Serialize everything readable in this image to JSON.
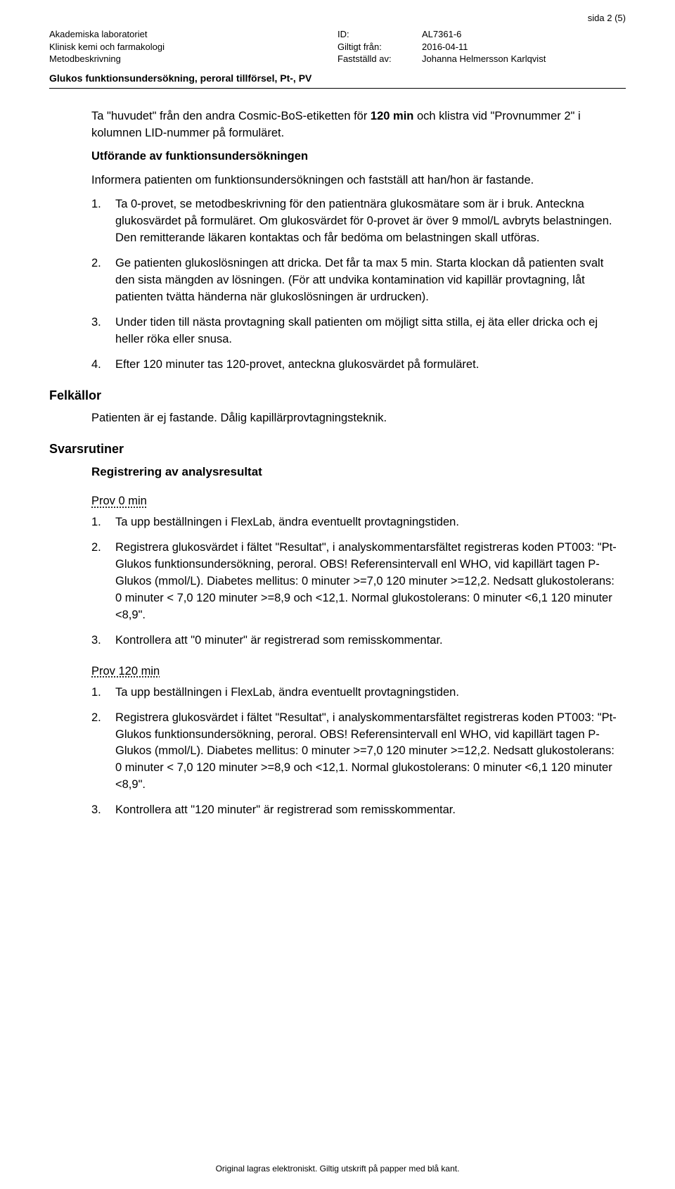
{
  "page_indicator": "sida 2 (5)",
  "header": {
    "left": {
      "org": "Akademiska laboratoriet",
      "dept": "Klinisk kemi och farmakologi",
      "doc_type": "Metodbeskrivning"
    },
    "right": {
      "id_label": "ID:",
      "id_value": "AL7361-6",
      "valid_label": "Giltigt från:",
      "valid_value": "2016-04-11",
      "approved_label": "Fastställd av:",
      "approved_value": "Johanna Helmersson Karlqvist"
    },
    "title": "Glukos funktionsundersökning, peroral tillförsel, Pt-, PV"
  },
  "intro": {
    "p1_a": "Ta \"huvudet\" från den andra Cosmic-BoS-etiketten för ",
    "p1_b_bold": "120 min",
    "p1_c": " och klistra vid \"Provnummer 2\" i kolumnen LID-nummer på formuläret.",
    "p2_heading": "Utförande av funktionsundersökningen",
    "p3": "Informera patienten om funktionsundersökningen och fastställ att han/hon är fastande."
  },
  "steps": [
    "Ta 0-provet, se metodbeskrivning för den patientnära glukosmätare som är i bruk. Anteckna glukosvärdet på formuläret. Om glukosvärdet för 0-provet är över 9 mmol/L avbryts belastningen. Den remitterande läkaren kontaktas och får bedöma om belastningen skall utföras.",
    "Ge patienten glukoslösningen att dricka. Det får ta max 5 min. Starta klockan då patienten svalt den sista mängden av lösningen. (För att undvika kontamination vid kapillär provtagning, låt patienten tvätta händerna när glukoslösningen är urdrucken).",
    "Under tiden till nästa provtagning skall patienten om möjligt sitta stilla, ej äta eller dricka och ej heller röka eller snusa.",
    "Efter 120 minuter tas 120-provet, anteckna glukosvärdet på formuläret."
  ],
  "felkallor": {
    "heading": "Felkällor",
    "text": "Patienten är ej fastande. Dålig kapillärprovtagningsteknik."
  },
  "svarsrutiner": {
    "heading": "Svarsrutiner",
    "sub": "Registrering av analysresultat",
    "prov0_label": "Prov 0 min",
    "prov0_steps": [
      "Ta upp beställningen i FlexLab, ändra eventuellt provtagningstiden.",
      "Registrera glukosvärdet i fältet \"Resultat\", i analyskommentarsfältet registreras koden PT003: \"Pt-Glukos funktionsundersökning, peroral. OBS! Referensintervall enl WHO, vid kapillärt tagen P-Glukos (mmol/L). Diabetes mellitus: 0 minuter >=7,0 120 minuter >=12,2. Nedsatt glukostolerans: 0 minuter < 7,0  120 minuter >=8,9 och <12,1. Normal glukostolerans: 0 minuter <6,1  120 minuter  <8,9\".",
      "Kontrollera att \"0 minuter\" är registrerad som remisskommentar."
    ],
    "prov120_label": "Prov 120 min",
    "prov120_steps": [
      "Ta upp beställningen i FlexLab, ändra eventuellt provtagningstiden.",
      "Registrera glukosvärdet i fältet \"Resultat\", i analyskommentarsfältet registreras koden PT003: \"Pt-Glukos funktionsundersökning, peroral. OBS! Referensintervall enl WHO, vid kapillärt tagen P-Glukos (mmol/L). Diabetes mellitus: 0 minuter >=7,0 120 minuter >=12,2. Nedsatt glukostolerans: 0 minuter < 7,0  120 minuter >=8,9 och <12,1. Normal glukostolerans: 0 minuter <6,1  120 minuter  <8,9\".",
      "Kontrollera att \"120 minuter\" är registrerad som remisskommentar."
    ]
  },
  "footer": "Original lagras elektroniskt. Giltig utskrift på papper med blå kant."
}
